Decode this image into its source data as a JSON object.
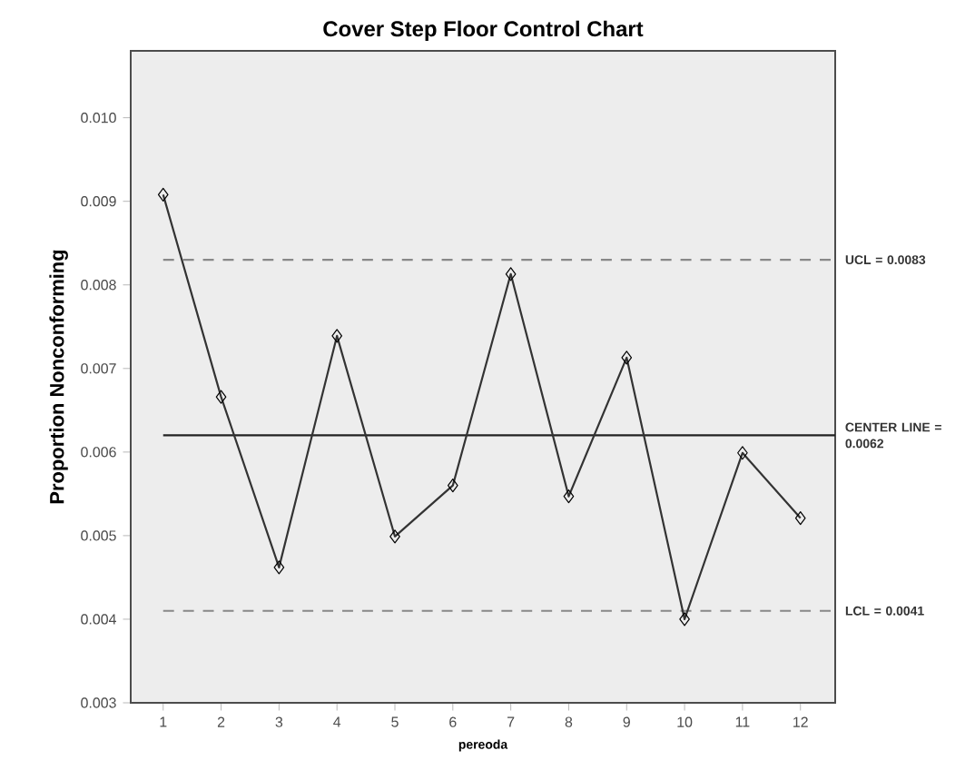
{
  "chart_data": {
    "type": "line",
    "title": "Cover Step Floor Control Chart",
    "xlabel": "pereoda",
    "ylabel": "Proportion Nonconforming",
    "categories": [
      "1",
      "2",
      "3",
      "4",
      "5",
      "6",
      "7",
      "8",
      "9",
      "10",
      "11",
      "12"
    ],
    "series": [
      {
        "color": "#333333",
        "values": [
          0.00908,
          0.00666,
          0.00462,
          0.00739,
          0.00499,
          0.0056,
          0.00813,
          0.00547,
          0.00713,
          0.004,
          0.00599,
          0.00521
        ]
      }
    ],
    "ylim": [
      0.003,
      0.0108
    ],
    "yticks": [
      {
        "value": 0.003,
        "label": "0.003"
      },
      {
        "value": 0.004,
        "label": "0.004"
      },
      {
        "value": 0.005,
        "label": "0.005"
      },
      {
        "value": 0.006,
        "label": "0.006"
      },
      {
        "value": 0.007,
        "label": "0.007"
      },
      {
        "value": 0.008,
        "label": "0.008"
      },
      {
        "value": 0.009,
        "label": "0.009"
      },
      {
        "value": 0.01,
        "label": "0.010"
      }
    ],
    "ref_lines": [
      {
        "axis": "y",
        "value": 0.0083,
        "label": "UCL = 0.0083",
        "line_style": "dashed",
        "color": "#888888"
      },
      {
        "axis": "y",
        "value": 0.0062,
        "label": "CENTER LINE = 0.0062",
        "line_style": "solid",
        "color": "#222222"
      },
      {
        "axis": "y",
        "value": 0.0041,
        "label": "LCL = 0.0041",
        "line_style": "dashed",
        "color": "#888888"
      }
    ],
    "marker": "diamond",
    "line_style": "solid",
    "grid": false
  }
}
